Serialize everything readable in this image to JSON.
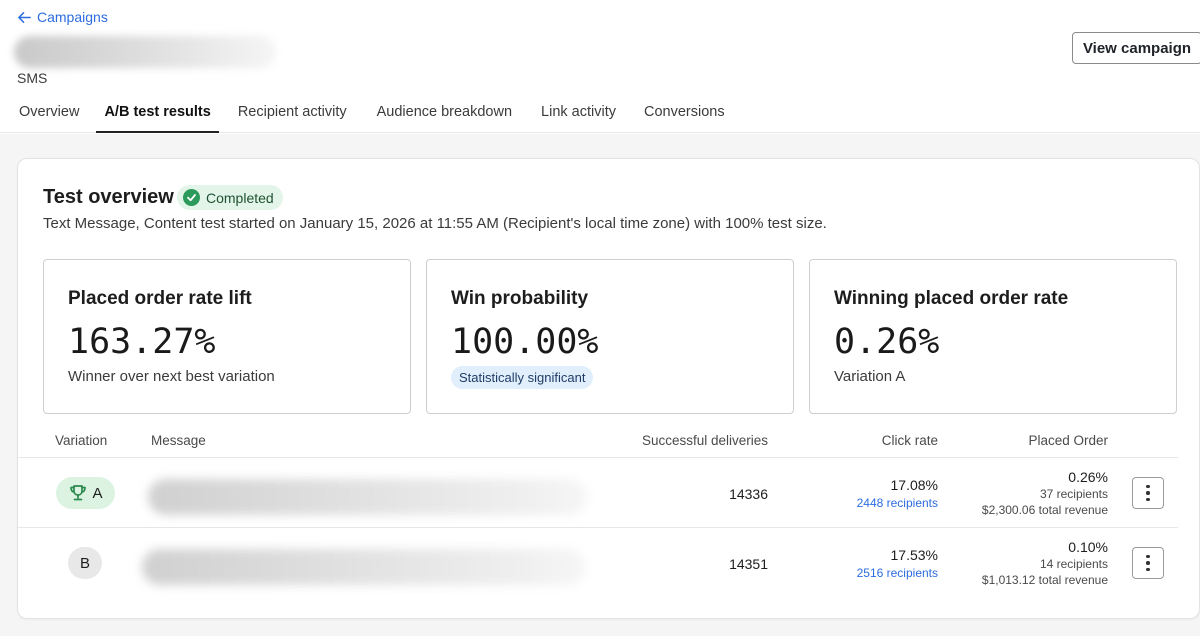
{
  "header": {
    "back_label": "Campaigns",
    "channel": "SMS",
    "view_campaign_label": "View campaign",
    "tabs": [
      {
        "label": "Overview"
      },
      {
        "label": "A/B test results"
      },
      {
        "label": "Recipient activity"
      },
      {
        "label": "Audience breakdown"
      },
      {
        "label": "Link activity"
      },
      {
        "label": "Conversions"
      }
    ],
    "active_tab": "A/B test results"
  },
  "overview": {
    "title": "Test overview",
    "status": "Completed",
    "description": "Text Message, Content test started on January 15, 2026 at 11:55 AM (Recipient's local time zone) with 100% test size."
  },
  "metrics": [
    {
      "title": "Placed order rate lift",
      "value": "163.27%",
      "sub": "Winner over next best variation"
    },
    {
      "title": "Win probability",
      "value": "100.00%",
      "chip": "Statistically significant"
    },
    {
      "title": "Winning placed order rate",
      "value": "0.26%",
      "sub": "Variation A"
    }
  ],
  "table": {
    "headers": {
      "variation": "Variation",
      "message": "Message",
      "deliveries": "Successful deliveries",
      "click_rate": "Click rate",
      "placed_order": "Placed Order"
    },
    "rows": [
      {
        "variation": "A",
        "winner": true,
        "deliveries": "14336",
        "click_rate": "17.08%",
        "click_recipients": "2448 recipients",
        "order_rate": "0.26%",
        "order_recipients": "37 recipients",
        "order_revenue": "$2,300.06 total revenue"
      },
      {
        "variation": "B",
        "winner": false,
        "deliveries": "14351",
        "click_rate": "17.53%",
        "click_recipients": "2516 recipients",
        "order_rate": "0.10%",
        "order_recipients": "14 recipients",
        "order_revenue": "$1,013.12 total revenue"
      }
    ]
  },
  "colors": {
    "accent_link": "#2d6cdf",
    "success_badge_bg": "#e3f5e9",
    "success_icon": "#2c9a5a",
    "info_chip_bg": "#e1eefc",
    "winner_chip_bg": "#dcf3e2",
    "trophy": "#2c8a4e"
  },
  "icons": {
    "back": "arrow-left-icon",
    "status": "check-circle-icon",
    "winner": "trophy-icon",
    "row_menu": "kebab-menu-icon"
  }
}
